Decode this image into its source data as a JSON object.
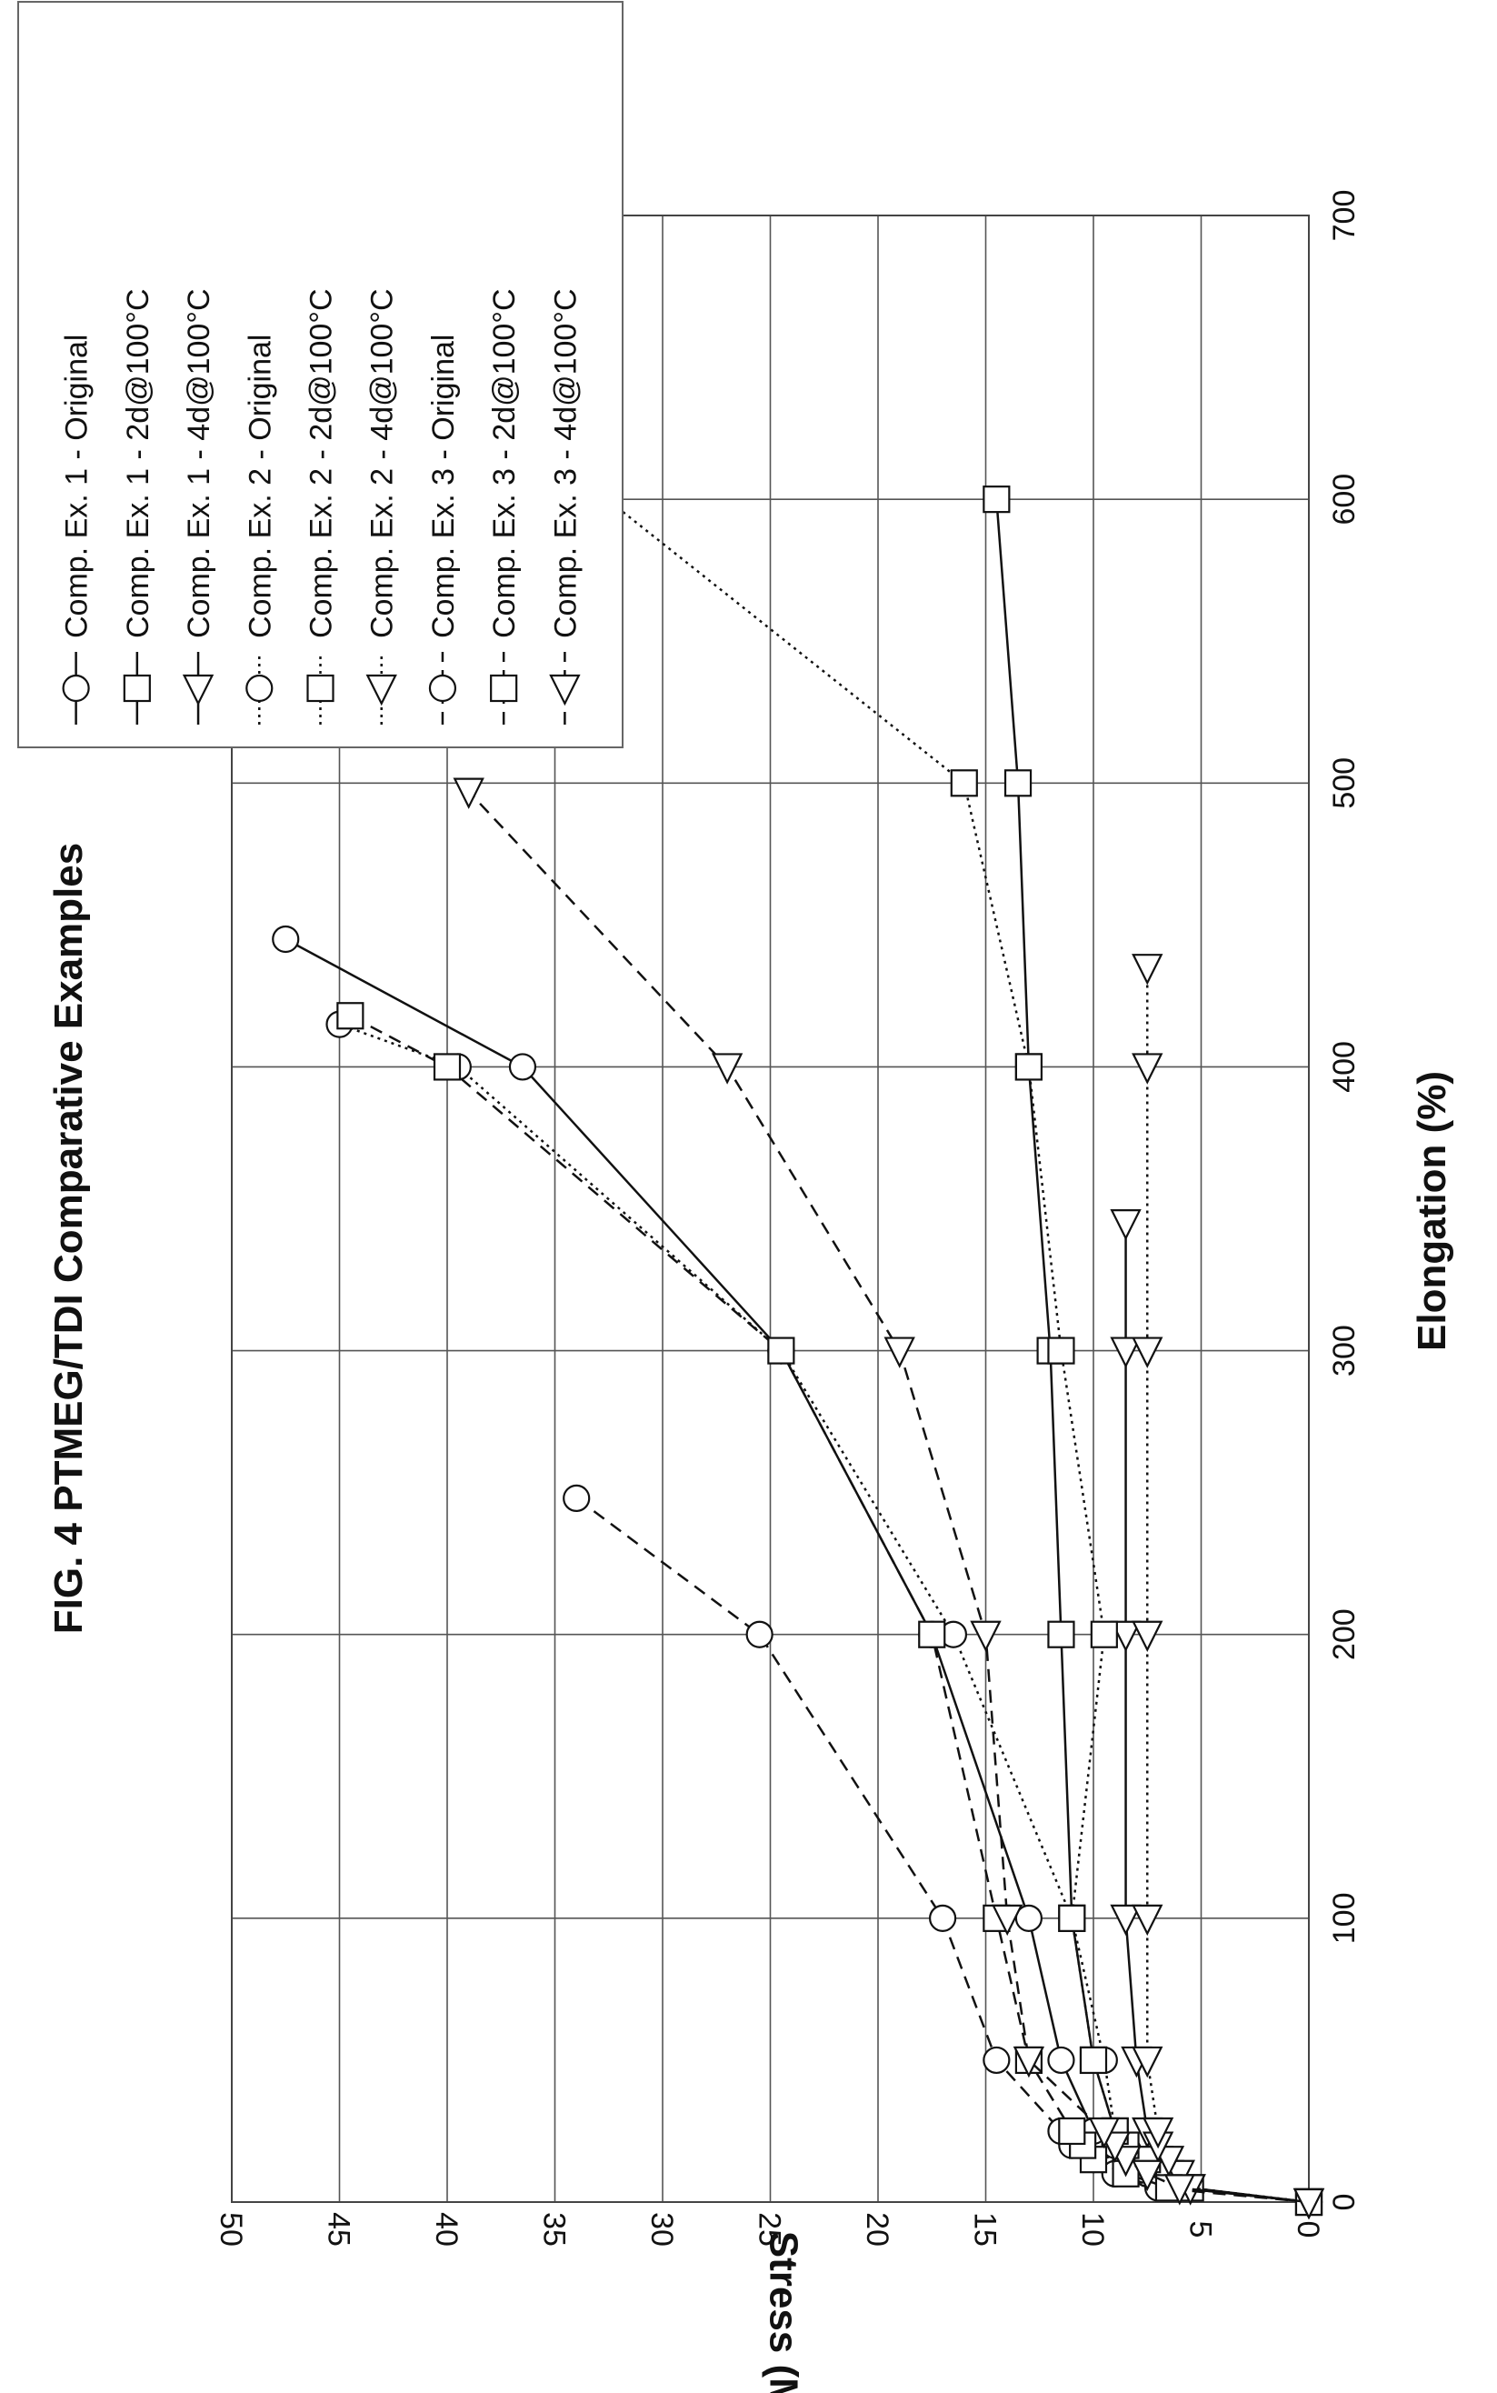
{
  "chart_data": {
    "type": "line",
    "title": "FIG. 4  PTMEG/TDI Comparative Examples",
    "xlabel": "Elongation (%)",
    "ylabel": "Stress (MPa)",
    "xlim": [
      0,
      700
    ],
    "ylim": [
      0,
      50
    ],
    "x_ticks": [
      "0",
      "100",
      "200",
      "300",
      "400",
      "500",
      "600",
      "700"
    ],
    "y_ticks": [
      "0",
      "5",
      "10",
      "15",
      "20",
      "25",
      "30",
      "35",
      "40",
      "45",
      "50"
    ],
    "grid": true,
    "legend_position": "upper-right",
    "series": [
      {
        "name": "Comp. Ex. 1 - Original",
        "marker": "circle",
        "line": "solid",
        "points": [
          [
            0,
            0
          ],
          [
            5,
            6
          ],
          [
            10,
            7.5
          ],
          [
            15,
            8.5
          ],
          [
            20,
            9.5
          ],
          [
            25,
            10
          ],
          [
            50,
            11.5
          ],
          [
            100,
            13
          ],
          [
            200,
            17.5
          ],
          [
            300,
            24.5
          ],
          [
            400,
            36.5
          ],
          [
            445,
            47.5
          ]
        ]
      },
      {
        "name": "Comp. Ex. 1 - 2d@100°C",
        "marker": "square",
        "line": "solid",
        "points": [
          [
            0,
            0
          ],
          [
            5,
            6
          ],
          [
            10,
            7
          ],
          [
            15,
            8
          ],
          [
            20,
            8.5
          ],
          [
            25,
            9
          ],
          [
            50,
            10
          ],
          [
            100,
            11
          ],
          [
            200,
            11.5
          ],
          [
            300,
            12
          ],
          [
            400,
            13
          ],
          [
            500,
            13.5
          ],
          [
            600,
            14.5
          ]
        ]
      },
      {
        "name": "Comp. Ex. 1 - 4d@100°C",
        "marker": "triangle",
        "line": "solid",
        "points": [
          [
            0,
            0
          ],
          [
            5,
            5.5
          ],
          [
            10,
            6.5
          ],
          [
            15,
            7
          ],
          [
            20,
            7.5
          ],
          [
            25,
            7.5
          ],
          [
            50,
            8
          ],
          [
            100,
            8.5
          ],
          [
            200,
            8.5
          ],
          [
            300,
            8.5
          ],
          [
            345,
            8.5
          ]
        ]
      },
      {
        "name": "Comp. Ex. 2 - Original",
        "marker": "circle",
        "line": "dotted",
        "points": [
          [
            0,
            0
          ],
          [
            5,
            6
          ],
          [
            10,
            7.5
          ],
          [
            15,
            8.5
          ],
          [
            20,
            9
          ],
          [
            25,
            9
          ],
          [
            50,
            9.5
          ],
          [
            100,
            11
          ],
          [
            200,
            16.5
          ],
          [
            300,
            24.5
          ],
          [
            400,
            39.5
          ],
          [
            415,
            45
          ]
        ]
      },
      {
        "name": "Comp. Ex. 2 - 2d@100°C",
        "marker": "square",
        "line": "dotted",
        "points": [
          [
            0,
            0
          ],
          [
            5,
            5.5
          ],
          [
            10,
            6.5
          ],
          [
            15,
            7.5
          ],
          [
            20,
            8.5
          ],
          [
            25,
            9
          ],
          [
            50,
            10
          ],
          [
            100,
            11
          ],
          [
            200,
            9.5
          ],
          [
            300,
            11.5
          ],
          [
            400,
            13
          ],
          [
            500,
            16
          ],
          [
            690,
            47.5
          ]
        ]
      },
      {
        "name": "Comp. Ex. 2 - 4d@100°C",
        "marker": "triangle",
        "line": "dotted",
        "points": [
          [
            0,
            0
          ],
          [
            5,
            5.5
          ],
          [
            10,
            6
          ],
          [
            15,
            6.5
          ],
          [
            20,
            7
          ],
          [
            25,
            7
          ],
          [
            50,
            7.5
          ],
          [
            100,
            7.5
          ],
          [
            200,
            7.5
          ],
          [
            300,
            7.5
          ],
          [
            400,
            7.5
          ],
          [
            435,
            7.5
          ]
        ]
      },
      {
        "name": "Comp. Ex. 3 - Original",
        "marker": "circle",
        "line": "dashed",
        "points": [
          [
            0,
            0
          ],
          [
            5,
            7
          ],
          [
            10,
            9
          ],
          [
            15,
            10
          ],
          [
            20,
            11
          ],
          [
            25,
            11.5
          ],
          [
            50,
            14.5
          ],
          [
            100,
            17
          ],
          [
            200,
            25.5
          ],
          [
            248,
            34
          ]
        ]
      },
      {
        "name": "Comp. Ex. 3 - 2d@100°C",
        "marker": "square",
        "line": "dashed",
        "points": [
          [
            0,
            0
          ],
          [
            5,
            6.5
          ],
          [
            10,
            8.5
          ],
          [
            15,
            10
          ],
          [
            20,
            10.5
          ],
          [
            25,
            11
          ],
          [
            50,
            13
          ],
          [
            100,
            14.5
          ],
          [
            200,
            17.5
          ],
          [
            300,
            24.5
          ],
          [
            400,
            40
          ],
          [
            418,
            44.5
          ]
        ]
      },
      {
        "name": "Comp. Ex. 3 - 4d@100°C",
        "marker": "triangle",
        "line": "dashed",
        "points": [
          [
            0,
            0
          ],
          [
            5,
            6
          ],
          [
            10,
            7.5
          ],
          [
            15,
            8.5
          ],
          [
            20,
            9
          ],
          [
            25,
            9.5
          ],
          [
            50,
            13
          ],
          [
            100,
            14
          ],
          [
            200,
            15
          ],
          [
            300,
            19
          ],
          [
            400,
            27
          ],
          [
            497,
            39
          ]
        ]
      }
    ]
  }
}
